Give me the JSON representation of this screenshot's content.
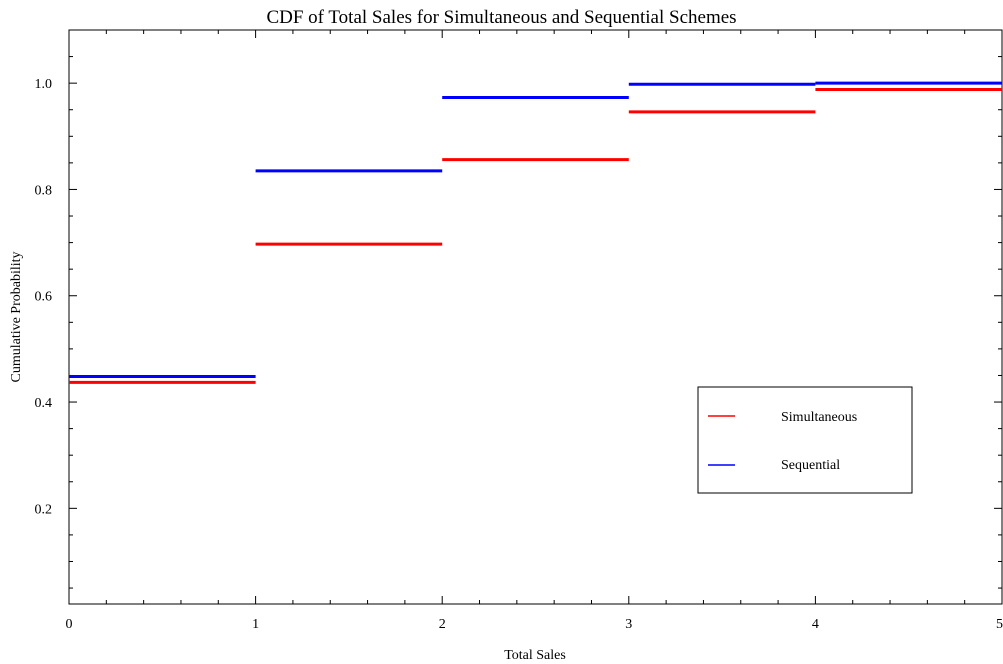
{
  "chart_data": {
    "type": "line",
    "title": "CDF of Total Sales for Simultaneous and Sequential Schemes",
    "xlabel": "Total Sales",
    "ylabel": "Cumulative Probability",
    "xlim": [
      0,
      5
    ],
    "ylim": [
      0.02,
      1.1
    ],
    "x_ticks": [
      0,
      1,
      2,
      3,
      4,
      5
    ],
    "x_tick_labels": [
      "0",
      "1",
      "2",
      "3",
      "4",
      "5"
    ],
    "y_ticks": [
      0.2,
      0.4,
      0.6,
      0.8,
      1.0
    ],
    "y_tick_labels": [
      "0.2",
      "0.4",
      "0.6",
      "0.8",
      "1.0"
    ],
    "x_minor_step": 0.2,
    "y_minor_step": 0.05,
    "grid": false,
    "legend_position": "center-right",
    "series": [
      {
        "name": "Simultaneous",
        "color": "#ff0000",
        "step_style": "horizontal-segments",
        "steps": [
          {
            "x_start": 0,
            "x_end": 1,
            "y": 0.437
          },
          {
            "x_start": 1,
            "x_end": 2,
            "y": 0.697
          },
          {
            "x_start": 2,
            "x_end": 3,
            "y": 0.856
          },
          {
            "x_start": 3,
            "x_end": 4,
            "y": 0.946
          },
          {
            "x_start": 4,
            "x_end": 5,
            "y": 0.988
          }
        ]
      },
      {
        "name": "Sequential",
        "color": "#0000ff",
        "step_style": "horizontal-segments",
        "steps": [
          {
            "x_start": 0,
            "x_end": 1,
            "y": 0.448
          },
          {
            "x_start": 1,
            "x_end": 2,
            "y": 0.835
          },
          {
            "x_start": 2,
            "x_end": 3,
            "y": 0.973
          },
          {
            "x_start": 3,
            "x_end": 4,
            "y": 0.998
          },
          {
            "x_start": 4,
            "x_end": 5,
            "y": 1.0
          }
        ]
      }
    ]
  }
}
